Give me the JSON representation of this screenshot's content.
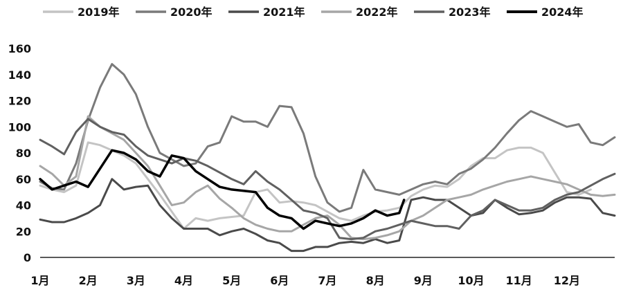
{
  "chart_data": {
    "type": "line",
    "title": "",
    "xlabel": "",
    "ylabel": "",
    "ylim": [
      0,
      160
    ],
    "yticks": [
      0,
      20,
      40,
      60,
      80,
      100,
      120,
      140,
      160
    ],
    "xlim": [
      1,
      13
    ],
    "month_labels": [
      "1月",
      "2月",
      "3月",
      "4月",
      "5月",
      "6月",
      "7月",
      "8月",
      "9月",
      "10月",
      "11月",
      "12月"
    ],
    "grid": false,
    "legend_position": "top",
    "series": [
      {
        "name": "2019年",
        "color": "#c4c4c4",
        "width": 3,
        "points": [
          [
            1,
            55
          ],
          [
            1.25,
            52
          ],
          [
            1.5,
            50
          ],
          [
            1.75,
            55
          ],
          [
            2,
            88
          ],
          [
            2.25,
            86
          ],
          [
            2.5,
            82
          ],
          [
            2.75,
            78
          ],
          [
            3,
            72
          ],
          [
            3.25,
            60
          ],
          [
            3.5,
            48
          ],
          [
            3.75,
            35
          ],
          [
            4,
            22
          ],
          [
            4.25,
            30
          ],
          [
            4.5,
            28
          ],
          [
            4.75,
            30
          ],
          [
            5,
            31
          ],
          [
            5.25,
            32
          ],
          [
            5.5,
            50
          ],
          [
            5.75,
            52
          ],
          [
            6,
            42
          ],
          [
            6.25,
            43
          ],
          [
            6.5,
            42
          ],
          [
            6.75,
            40
          ],
          [
            7,
            35
          ],
          [
            7.25,
            30
          ],
          [
            7.5,
            28
          ],
          [
            7.75,
            32
          ],
          [
            8,
            35
          ],
          [
            8.25,
            36
          ],
          [
            8.5,
            38
          ],
          [
            8.75,
            47
          ],
          [
            9,
            52
          ],
          [
            9.25,
            55
          ],
          [
            9.5,
            54
          ],
          [
            9.75,
            60
          ],
          [
            10,
            70
          ],
          [
            10.25,
            76
          ],
          [
            10.5,
            76
          ],
          [
            10.75,
            82
          ],
          [
            11,
            84
          ],
          [
            11.25,
            84
          ],
          [
            11.5,
            80
          ],
          [
            11.75,
            65
          ],
          [
            12,
            50
          ],
          [
            12.25,
            48
          ],
          [
            12.5,
            52
          ]
        ]
      },
      {
        "name": "2020年",
        "color": "#7a7a7a",
        "width": 3,
        "points": [
          [
            1,
            58
          ],
          [
            1.25,
            53
          ],
          [
            1.5,
            52
          ],
          [
            1.75,
            72
          ],
          [
            2,
            105
          ],
          [
            2.25,
            130
          ],
          [
            2.5,
            148
          ],
          [
            2.75,
            140
          ],
          [
            3,
            125
          ],
          [
            3.25,
            100
          ],
          [
            3.5,
            80
          ],
          [
            3.75,
            75
          ],
          [
            4,
            70
          ],
          [
            4.25,
            72
          ],
          [
            4.5,
            85
          ],
          [
            4.75,
            88
          ],
          [
            5,
            108
          ],
          [
            5.25,
            104
          ],
          [
            5.5,
            104
          ],
          [
            5.75,
            100
          ],
          [
            6,
            116
          ],
          [
            6.25,
            115
          ],
          [
            6.5,
            95
          ],
          [
            6.75,
            62
          ],
          [
            7,
            42
          ],
          [
            7.25,
            35
          ],
          [
            7.5,
            38
          ],
          [
            7.75,
            67
          ],
          [
            8,
            52
          ],
          [
            8.25,
            50
          ],
          [
            8.5,
            48
          ],
          [
            8.75,
            52
          ],
          [
            9,
            56
          ],
          [
            9.25,
            58
          ],
          [
            9.5,
            56
          ],
          [
            9.75,
            64
          ],
          [
            10,
            68
          ],
          [
            10.25,
            75
          ],
          [
            10.5,
            84
          ],
          [
            10.75,
            95
          ],
          [
            11,
            105
          ],
          [
            11.25,
            112
          ],
          [
            11.5,
            108
          ],
          [
            11.75,
            104
          ],
          [
            12,
            100
          ],
          [
            12.25,
            102
          ],
          [
            12.5,
            88
          ],
          [
            12.75,
            86
          ],
          [
            13,
            92
          ]
        ]
      },
      {
        "name": "2021年",
        "color": "#4a4a4a",
        "width": 3,
        "points": [
          [
            1,
            29
          ],
          [
            1.25,
            27
          ],
          [
            1.5,
            27
          ],
          [
            1.75,
            30
          ],
          [
            2,
            34
          ],
          [
            2.25,
            40
          ],
          [
            2.5,
            60
          ],
          [
            2.75,
            52
          ],
          [
            3,
            54
          ],
          [
            3.25,
            55
          ],
          [
            3.5,
            40
          ],
          [
            3.75,
            30
          ],
          [
            4,
            22
          ],
          [
            4.25,
            22
          ],
          [
            4.5,
            22
          ],
          [
            4.75,
            17
          ],
          [
            5,
            20
          ],
          [
            5.25,
            22
          ],
          [
            5.5,
            18
          ],
          [
            5.75,
            13
          ],
          [
            6,
            11
          ],
          [
            6.25,
            5
          ],
          [
            6.5,
            5
          ],
          [
            6.75,
            8
          ],
          [
            7,
            8
          ],
          [
            7.25,
            11
          ],
          [
            7.5,
            12
          ],
          [
            7.75,
            11
          ],
          [
            8,
            14
          ],
          [
            8.25,
            11
          ],
          [
            8.5,
            13
          ],
          [
            8.75,
            44
          ],
          [
            9,
            46
          ],
          [
            9.25,
            44
          ],
          [
            9.5,
            44
          ],
          [
            9.75,
            38
          ],
          [
            10,
            32
          ],
          [
            10.25,
            34
          ],
          [
            10.5,
            44
          ],
          [
            10.75,
            38
          ],
          [
            11,
            33
          ],
          [
            11.25,
            34
          ],
          [
            11.5,
            36
          ],
          [
            11.75,
            42
          ],
          [
            12,
            46
          ],
          [
            12.25,
            46
          ],
          [
            12.5,
            45
          ],
          [
            12.75,
            34
          ],
          [
            13,
            32
          ]
        ]
      },
      {
        "name": "2022年",
        "color": "#a6a6a6",
        "width": 3,
        "points": [
          [
            1,
            70
          ],
          [
            1.25,
            64
          ],
          [
            1.5,
            55
          ],
          [
            1.75,
            62
          ],
          [
            2,
            108
          ],
          [
            2.25,
            100
          ],
          [
            2.5,
            95
          ],
          [
            2.75,
            90
          ],
          [
            3,
            80
          ],
          [
            3.25,
            70
          ],
          [
            3.5,
            55
          ],
          [
            3.75,
            40
          ],
          [
            4,
            42
          ],
          [
            4.25,
            50
          ],
          [
            4.5,
            55
          ],
          [
            4.75,
            45
          ],
          [
            5,
            38
          ],
          [
            5.25,
            30
          ],
          [
            5.5,
            25
          ],
          [
            5.75,
            22
          ],
          [
            6,
            20
          ],
          [
            6.25,
            20
          ],
          [
            6.5,
            25
          ],
          [
            6.75,
            30
          ],
          [
            7,
            32
          ],
          [
            7.25,
            25
          ],
          [
            7.5,
            15
          ],
          [
            7.75,
            14
          ],
          [
            8,
            15
          ],
          [
            8.25,
            17
          ],
          [
            8.5,
            20
          ],
          [
            8.75,
            28
          ],
          [
            9,
            32
          ],
          [
            9.25,
            38
          ],
          [
            9.5,
            44
          ],
          [
            9.75,
            46
          ],
          [
            10,
            48
          ],
          [
            10.25,
            52
          ],
          [
            10.5,
            55
          ],
          [
            10.75,
            58
          ],
          [
            11,
            60
          ],
          [
            11.25,
            62
          ],
          [
            11.5,
            60
          ],
          [
            11.75,
            58
          ],
          [
            12,
            56
          ],
          [
            12.25,
            52
          ],
          [
            12.5,
            48
          ],
          [
            12.75,
            47
          ],
          [
            13,
            48
          ]
        ]
      },
      {
        "name": "2023年",
        "color": "#606060",
        "width": 3,
        "points": [
          [
            1,
            90
          ],
          [
            1.25,
            85
          ],
          [
            1.5,
            79
          ],
          [
            1.75,
            96
          ],
          [
            2,
            106
          ],
          [
            2.25,
            100
          ],
          [
            2.5,
            96
          ],
          [
            2.75,
            94
          ],
          [
            3,
            85
          ],
          [
            3.25,
            78
          ],
          [
            3.5,
            75
          ],
          [
            3.75,
            72
          ],
          [
            4,
            76
          ],
          [
            4.25,
            74
          ],
          [
            4.5,
            70
          ],
          [
            4.75,
            65
          ],
          [
            5,
            60
          ],
          [
            5.25,
            56
          ],
          [
            5.5,
            66
          ],
          [
            5.75,
            58
          ],
          [
            6,
            52
          ],
          [
            6.25,
            44
          ],
          [
            6.5,
            36
          ],
          [
            6.75,
            34
          ],
          [
            7,
            30
          ],
          [
            7.25,
            15
          ],
          [
            7.5,
            14
          ],
          [
            7.75,
            15
          ],
          [
            8,
            20
          ],
          [
            8.25,
            22
          ],
          [
            8.5,
            25
          ],
          [
            8.75,
            28
          ],
          [
            9,
            26
          ],
          [
            9.25,
            24
          ],
          [
            9.5,
            24
          ],
          [
            9.75,
            22
          ],
          [
            10,
            32
          ],
          [
            10.25,
            36
          ],
          [
            10.5,
            44
          ],
          [
            10.75,
            40
          ],
          [
            11,
            36
          ],
          [
            11.25,
            36
          ],
          [
            11.5,
            38
          ],
          [
            11.75,
            44
          ],
          [
            12,
            48
          ],
          [
            12.25,
            50
          ],
          [
            12.5,
            55
          ],
          [
            12.75,
            60
          ],
          [
            13,
            64
          ]
        ]
      },
      {
        "name": "2024年",
        "color": "#000000",
        "width": 3.5,
        "points": [
          [
            1,
            60
          ],
          [
            1.25,
            52
          ],
          [
            1.5,
            55
          ],
          [
            1.75,
            58
          ],
          [
            2,
            54
          ],
          [
            2.25,
            68
          ],
          [
            2.5,
            82
          ],
          [
            2.75,
            80
          ],
          [
            3,
            75
          ],
          [
            3.25,
            66
          ],
          [
            3.5,
            62
          ],
          [
            3.75,
            78
          ],
          [
            4,
            76
          ],
          [
            4.25,
            66
          ],
          [
            4.5,
            60
          ],
          [
            4.75,
            54
          ],
          [
            5,
            52
          ],
          [
            5.25,
            51
          ],
          [
            5.5,
            50
          ],
          [
            5.75,
            38
          ],
          [
            6,
            32
          ],
          [
            6.25,
            30
          ],
          [
            6.5,
            22
          ],
          [
            6.75,
            28
          ],
          [
            7,
            26
          ],
          [
            7.25,
            24
          ],
          [
            7.5,
            26
          ],
          [
            7.75,
            30
          ],
          [
            8,
            36
          ],
          [
            8.25,
            32
          ],
          [
            8.5,
            34
          ],
          [
            8.6,
            44
          ]
        ]
      }
    ]
  }
}
